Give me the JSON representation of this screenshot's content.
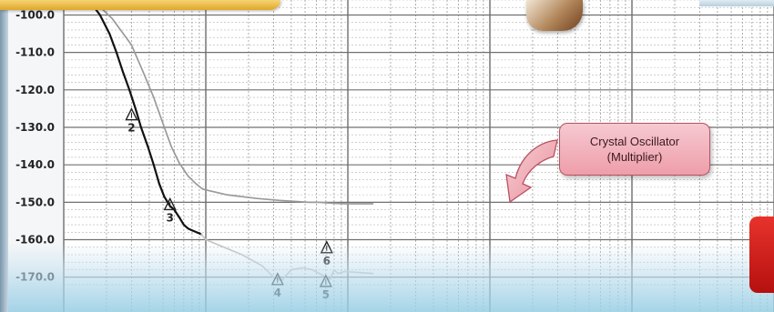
{
  "chart_data": {
    "type": "line",
    "ylim": [
      -172.5,
      -96
    ],
    "xlim": [
      0,
      10
    ],
    "x_scale": "log-decade-grid",
    "grid": true,
    "yticks": [
      {
        "label": "-100.0",
        "value": -100
      },
      {
        "label": "-110.0",
        "value": -110
      },
      {
        "label": "-120.0",
        "value": -120
      },
      {
        "label": "-130.0",
        "value": -130
      },
      {
        "label": "-140.0",
        "value": -140
      },
      {
        "label": "-150.0",
        "value": -150
      },
      {
        "label": "-160.0",
        "value": -160
      },
      {
        "label": "-170.0",
        "value": -170
      }
    ],
    "series": [
      {
        "color": "#111111",
        "points": [
          [
            1.5,
            -96
          ],
          [
            1.8,
            -100
          ],
          [
            2.1,
            -105
          ],
          [
            2.35,
            -110
          ],
          [
            2.6,
            -115
          ],
          [
            2.9,
            -120
          ],
          [
            3.2,
            -125
          ],
          [
            3.5,
            -130
          ],
          [
            3.9,
            -135
          ],
          [
            4.3,
            -140
          ],
          [
            4.7,
            -145
          ],
          [
            5.1,
            -148.5
          ],
          [
            5.6,
            -151
          ],
          [
            6.0,
            -152
          ],
          [
            6.5,
            -154
          ],
          [
            7.0,
            -156
          ],
          [
            7.5,
            -157
          ],
          [
            8.0,
            -157.5
          ],
          [
            8.6,
            -158
          ],
          [
            9.0,
            -158.3
          ],
          [
            9.3,
            -158.6
          ]
        ]
      },
      {
        "color": "#9a9a9a",
        "points": [
          [
            1.6,
            -96
          ],
          [
            2.2,
            -101
          ],
          [
            3.0,
            -108
          ],
          [
            3.6,
            -115
          ],
          [
            4.3,
            -122
          ],
          [
            5.0,
            -129
          ],
          [
            5.7,
            -135
          ],
          [
            6.5,
            -139.5
          ],
          [
            7.5,
            -143
          ],
          [
            8.5,
            -145
          ],
          [
            9.5,
            -146.5
          ],
          [
            10.4,
            -148
          ],
          [
            11.3,
            -149
          ],
          [
            12.3,
            -149.5
          ],
          [
            13.3,
            -149.8
          ],
          [
            14.3,
            -150
          ],
          [
            15.3,
            -150
          ],
          [
            16.3,
            -150.2
          ],
          [
            17.4,
            -150.3
          ],
          [
            18.6,
            -150.4
          ],
          [
            19.5,
            -150.4
          ]
        ]
      },
      {
        "color": "#c5c5c5",
        "points": [
          [
            9.3,
            -158.6
          ],
          [
            10.0,
            -160
          ],
          [
            10.8,
            -164
          ],
          [
            11.5,
            -167
          ],
          [
            12.0,
            -170
          ],
          [
            12.4,
            -171
          ],
          [
            13.0,
            -168
          ],
          [
            13.8,
            -167.5
          ],
          [
            14.6,
            -168
          ],
          [
            15.3,
            -169
          ],
          [
            16.0,
            -170
          ],
          [
            16.5,
            -170.5
          ],
          [
            17.0,
            -168
          ],
          [
            17.5,
            -169
          ],
          [
            18.5,
            -168.5
          ],
          [
            19.5,
            -169
          ]
        ]
      }
    ],
    "markers": [
      {
        "label": "2",
        "x": 3.0,
        "y": -127
      },
      {
        "label": "3",
        "x": 5.6,
        "y": -151
      },
      {
        "label": "4",
        "x": 12.2,
        "y": -171
      },
      {
        "label": "5",
        "x": 16.0,
        "y": -171.5
      },
      {
        "label": "6",
        "x": 16.1,
        "y": -162.5
      }
    ],
    "annotations": [
      {
        "text_lines": [
          "Crystal Oscillator",
          "(Multiplier)"
        ]
      }
    ]
  },
  "colors": {
    "callout_fill": "#f2b3bd",
    "callout_border": "#b65262",
    "red_accent": "#d42020",
    "banner": "#efc04c"
  },
  "icons": [
    "down-left-curved-arrow-icon",
    "triangle-marker-icon"
  ]
}
